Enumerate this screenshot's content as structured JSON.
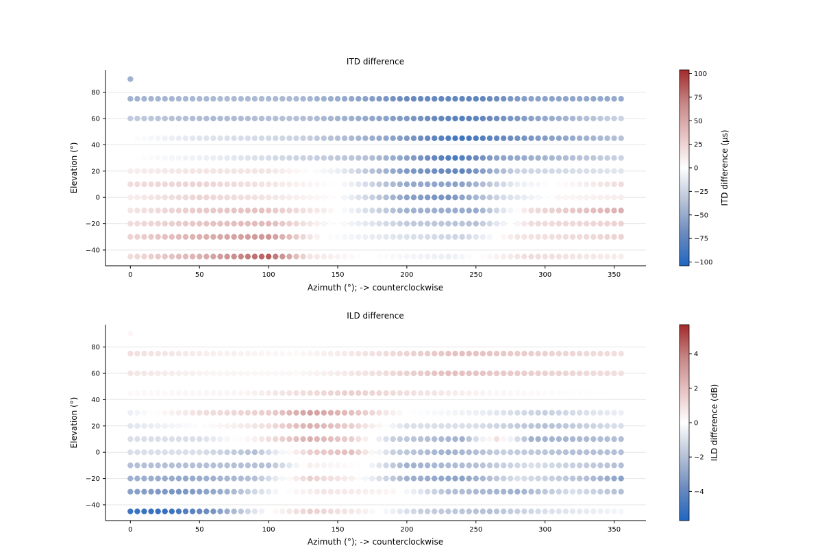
{
  "figure": {
    "background": "#ffffff"
  },
  "chart_data": [
    {
      "type": "scatter",
      "title": "ITD difference",
      "xlabel": "Azimuth (°); -> counterclockwise",
      "ylabel": "Elevation (°)",
      "xlim": [
        -18,
        373
      ],
      "ylim": [
        -52,
        97
      ],
      "xticks": [
        0,
        50,
        100,
        150,
        200,
        250,
        300,
        350
      ],
      "yticks": [
        -40,
        -20,
        0,
        20,
        40,
        60,
        80
      ],
      "grid": "horizontal",
      "elevations": [
        -45,
        -30,
        -20,
        -10,
        0,
        10,
        20,
        30,
        45,
        60,
        75
      ],
      "azimuths": {
        "start": 0,
        "stop": 355,
        "step": 5
      },
      "zenith_point": {
        "azimuth": 0,
        "elevation": 90,
        "value": -45
      },
      "value_model": {
        "description": "approximate difference per elevation row: anchors (azimuth: value)",
        "rows": {
          "-45": [
            [
              0,
              20
            ],
            [
              50,
              45
            ],
            [
              100,
              85
            ],
            [
              130,
              15
            ],
            [
              170,
              0
            ],
            [
              230,
              -10
            ],
            [
              290,
              20
            ],
            [
              355,
              10
            ]
          ],
          "-30": [
            [
              0,
              25
            ],
            [
              50,
              45
            ],
            [
              100,
              60
            ],
            [
              140,
              0
            ],
            [
              190,
              -15
            ],
            [
              240,
              -25
            ],
            [
              280,
              15
            ],
            [
              355,
              25
            ]
          ],
          "-20": [
            [
              0,
              20
            ],
            [
              60,
              35
            ],
            [
              100,
              40
            ],
            [
              140,
              5
            ],
            [
              200,
              -30
            ],
            [
              250,
              -35
            ],
            [
              290,
              20
            ],
            [
              355,
              25
            ]
          ],
          "-10": [
            [
              0,
              15
            ],
            [
              50,
              30
            ],
            [
              95,
              35
            ],
            [
              140,
              10
            ],
            [
              200,
              -45
            ],
            [
              250,
              -50
            ],
            [
              290,
              20
            ],
            [
              355,
              45
            ]
          ],
          "0": [
            [
              0,
              10
            ],
            [
              50,
              25
            ],
            [
              100,
              15
            ],
            [
              150,
              0
            ],
            [
              200,
              -55
            ],
            [
              230,
              -65
            ],
            [
              270,
              -20
            ],
            [
              310,
              5
            ],
            [
              355,
              10
            ]
          ],
          "10": [
            [
              0,
              20
            ],
            [
              50,
              25
            ],
            [
              100,
              15
            ],
            [
              150,
              0
            ],
            [
              200,
              -50
            ],
            [
              240,
              -55
            ],
            [
              280,
              -10
            ],
            [
              355,
              20
            ]
          ],
          "20": [
            [
              0,
              10
            ],
            [
              50,
              15
            ],
            [
              100,
              15
            ],
            [
              150,
              -10
            ],
            [
              200,
              -60
            ],
            [
              240,
              -75
            ],
            [
              280,
              -25
            ],
            [
              355,
              -15
            ]
          ],
          "30": [
            [
              0,
              0
            ],
            [
              60,
              -10
            ],
            [
              120,
              -25
            ],
            [
              170,
              -35
            ],
            [
              200,
              -55
            ],
            [
              235,
              -85
            ],
            [
              265,
              -55
            ],
            [
              355,
              -25
            ]
          ],
          "45": [
            [
              0,
              0
            ],
            [
              50,
              -15
            ],
            [
              120,
              -25
            ],
            [
              170,
              -45
            ],
            [
              200,
              -60
            ],
            [
              240,
              -90
            ],
            [
              270,
              -70
            ],
            [
              355,
              -35
            ]
          ],
          "60": [
            [
              0,
              -30
            ],
            [
              60,
              -40
            ],
            [
              120,
              -35
            ],
            [
              170,
              -50
            ],
            [
              200,
              -60
            ],
            [
              240,
              -80
            ],
            [
              280,
              -60
            ],
            [
              355,
              -25
            ]
          ],
          "75": [
            [
              0,
              -45
            ],
            [
              60,
              -40
            ],
            [
              120,
              -40
            ],
            [
              170,
              -55
            ],
            [
              200,
              -70
            ],
            [
              250,
              -75
            ],
            [
              290,
              -55
            ],
            [
              355,
              -50
            ]
          ]
        }
      },
      "colorbar": {
        "label": "ITD difference (µs)",
        "range": [
          -104,
          104
        ],
        "ticks": [
          -100,
          -75,
          -50,
          -25,
          0,
          25,
          50,
          75,
          100
        ],
        "colormap": [
          "#2166c0",
          "#6b8bbe",
          "#b8c3d8",
          "#ffffff",
          "#e6c2c2",
          "#c68585",
          "#a32a2a"
        ]
      }
    },
    {
      "type": "scatter",
      "title": "ILD difference",
      "xlabel": "Azimuth (°); -> counterclockwise",
      "ylabel": "Elevation (°)",
      "xlim": [
        -18,
        373
      ],
      "ylim": [
        -52,
        97
      ],
      "xticks": [
        0,
        50,
        100,
        150,
        200,
        250,
        300,
        350
      ],
      "yticks": [
        -40,
        -20,
        0,
        20,
        40,
        60,
        80
      ],
      "grid": "horizontal",
      "elevations": [
        -45,
        -30,
        -20,
        -10,
        0,
        10,
        20,
        30,
        45,
        60,
        75
      ],
      "azimuths": {
        "start": 0,
        "stop": 355,
        "step": 5
      },
      "zenith_point": {
        "azimuth": 0,
        "elevation": 90,
        "value": 0.3
      },
      "value_model": {
        "description": "approximate difference per elevation row: anchors (azimuth: value)",
        "rows": {
          "-45": [
            [
              0,
              -5
            ],
            [
              25,
              -5.2
            ],
            [
              60,
              -3.5
            ],
            [
              100,
              0
            ],
            [
              130,
              1.5
            ],
            [
              170,
              0.5
            ],
            [
              210,
              -1.5
            ],
            [
              260,
              -2
            ],
            [
              300,
              -1
            ],
            [
              355,
              -0.3
            ]
          ],
          "-30": [
            [
              0,
              -3
            ],
            [
              35,
              -3.5
            ],
            [
              70,
              -2.5
            ],
            [
              110,
              0
            ],
            [
              140,
              0.8
            ],
            [
              190,
              0.3
            ],
            [
              230,
              -2
            ],
            [
              280,
              -2.5
            ],
            [
              320,
              -1
            ],
            [
              355,
              -2
            ]
          ],
          "-20": [
            [
              0,
              -2.5
            ],
            [
              40,
              -2.8
            ],
            [
              90,
              -2
            ],
            [
              130,
              1.5
            ],
            [
              160,
              0.5
            ],
            [
              200,
              -2.5
            ],
            [
              240,
              -3
            ],
            [
              280,
              -1
            ],
            [
              330,
              -2
            ],
            [
              355,
              -3
            ]
          ],
          "-10": [
            [
              0,
              -2
            ],
            [
              50,
              -2
            ],
            [
              100,
              -2
            ],
            [
              130,
              0.5
            ],
            [
              170,
              0
            ],
            [
              200,
              -2.5
            ],
            [
              250,
              -2
            ],
            [
              290,
              -1
            ],
            [
              355,
              -2
            ]
          ],
          "0": [
            [
              0,
              -1
            ],
            [
              50,
              -1
            ],
            [
              90,
              -2
            ],
            [
              130,
              1.5
            ],
            [
              160,
              2
            ],
            [
              190,
              -1.5
            ],
            [
              230,
              -2.5
            ],
            [
              270,
              -1.5
            ],
            [
              320,
              -2
            ],
            [
              355,
              -2
            ]
          ],
          "10": [
            [
              0,
              -1
            ],
            [
              50,
              -1
            ],
            [
              90,
              0.5
            ],
            [
              130,
              2.5
            ],
            [
              160,
              1.5
            ],
            [
              190,
              -1.5
            ],
            [
              240,
              -2.5
            ],
            [
              265,
              1
            ],
            [
              290,
              -2.5
            ],
            [
              355,
              -2
            ]
          ],
          "20": [
            [
              0,
              -0.8
            ],
            [
              50,
              0
            ],
            [
              100,
              1
            ],
            [
              130,
              2.5
            ],
            [
              160,
              1.5
            ],
            [
              200,
              -1
            ],
            [
              250,
              -1
            ],
            [
              300,
              -2
            ],
            [
              355,
              -1
            ]
          ],
          "30": [
            [
              0,
              -0.5
            ],
            [
              50,
              1
            ],
            [
              100,
              1.5
            ],
            [
              130,
              3
            ],
            [
              160,
              2
            ],
            [
              200,
              0
            ],
            [
              250,
              -0.5
            ],
            [
              300,
              -1.5
            ],
            [
              355,
              -0.5
            ]
          ],
          "45": [
            [
              0,
              0.2
            ],
            [
              80,
              0.3
            ],
            [
              120,
              1
            ],
            [
              160,
              1.5
            ],
            [
              200,
              1
            ],
            [
              260,
              0.3
            ],
            [
              320,
              0.1
            ],
            [
              355,
              0
            ]
          ],
          "60": [
            [
              0,
              0.8
            ],
            [
              60,
              0.3
            ],
            [
              120,
              0.2
            ],
            [
              180,
              1
            ],
            [
              230,
              2
            ],
            [
              290,
              1.5
            ],
            [
              355,
              1
            ]
          ],
          "75": [
            [
              0,
              1
            ],
            [
              60,
              0.5
            ],
            [
              120,
              0.2
            ],
            [
              180,
              1
            ],
            [
              240,
              2
            ],
            [
              290,
              1.5
            ],
            [
              355,
              1
            ]
          ]
        }
      },
      "colorbar": {
        "label": "ILD difference (dB)",
        "range": [
          -5.7,
          5.7
        ],
        "ticks": [
          -4,
          -2,
          0,
          2,
          4
        ],
        "colormap": [
          "#2166c0",
          "#6b8bbe",
          "#b8c3d8",
          "#ffffff",
          "#e6c2c2",
          "#c68585",
          "#a32a2a"
        ]
      }
    }
  ]
}
